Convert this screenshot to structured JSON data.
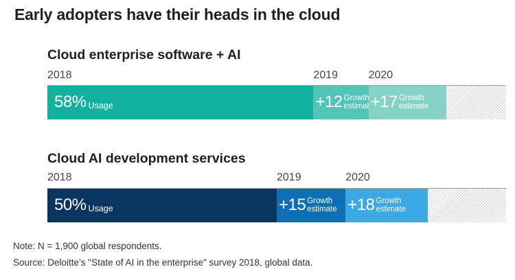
{
  "title": "Early adopters have their heads in the cloud",
  "colors": {
    "teal_usage": "#11b1a0",
    "teal_2019": "#54c4b6",
    "teal_2020": "#86d2c7",
    "navy_usage": "#0b3561",
    "blue_2019": "#0e6fb3",
    "blue_2020": "#3ba9e4"
  },
  "chart_data": [
    {
      "type": "bar",
      "orientation": "horizontal-stacked",
      "title": "Cloud enterprise software + AI",
      "series": [
        {
          "name": "2018",
          "value": 58,
          "display": "58%",
          "label": "Usage"
        },
        {
          "name": "2019",
          "value": 12,
          "display": "+12",
          "label_line1": "Growth",
          "label_line2": "estimate"
        },
        {
          "name": "2020",
          "value": 17,
          "display": "+17",
          "label_line1": "Growth",
          "label_line2": "estimate"
        }
      ],
      "xlim": [
        0,
        100
      ],
      "unit": "%"
    },
    {
      "type": "bar",
      "orientation": "horizontal-stacked",
      "title": "Cloud AI development services",
      "series": [
        {
          "name": "2018",
          "value": 50,
          "display": "50%",
          "label": "Usage"
        },
        {
          "name": "2019",
          "value": 15,
          "display": "+15",
          "label_line1": "Growth",
          "label_line2": "estimate"
        },
        {
          "name": "2020",
          "value": 18,
          "display": "+18",
          "label_line1": "Growth",
          "label_line2": "estimate"
        }
      ],
      "xlim": [
        0,
        100
      ],
      "unit": "%"
    }
  ],
  "notes": {
    "note": "Note: N = 1,900 global respondents.",
    "source": "Source: Deloitte’s \"State of AI in the enterprise\" survey 2018, global data."
  }
}
